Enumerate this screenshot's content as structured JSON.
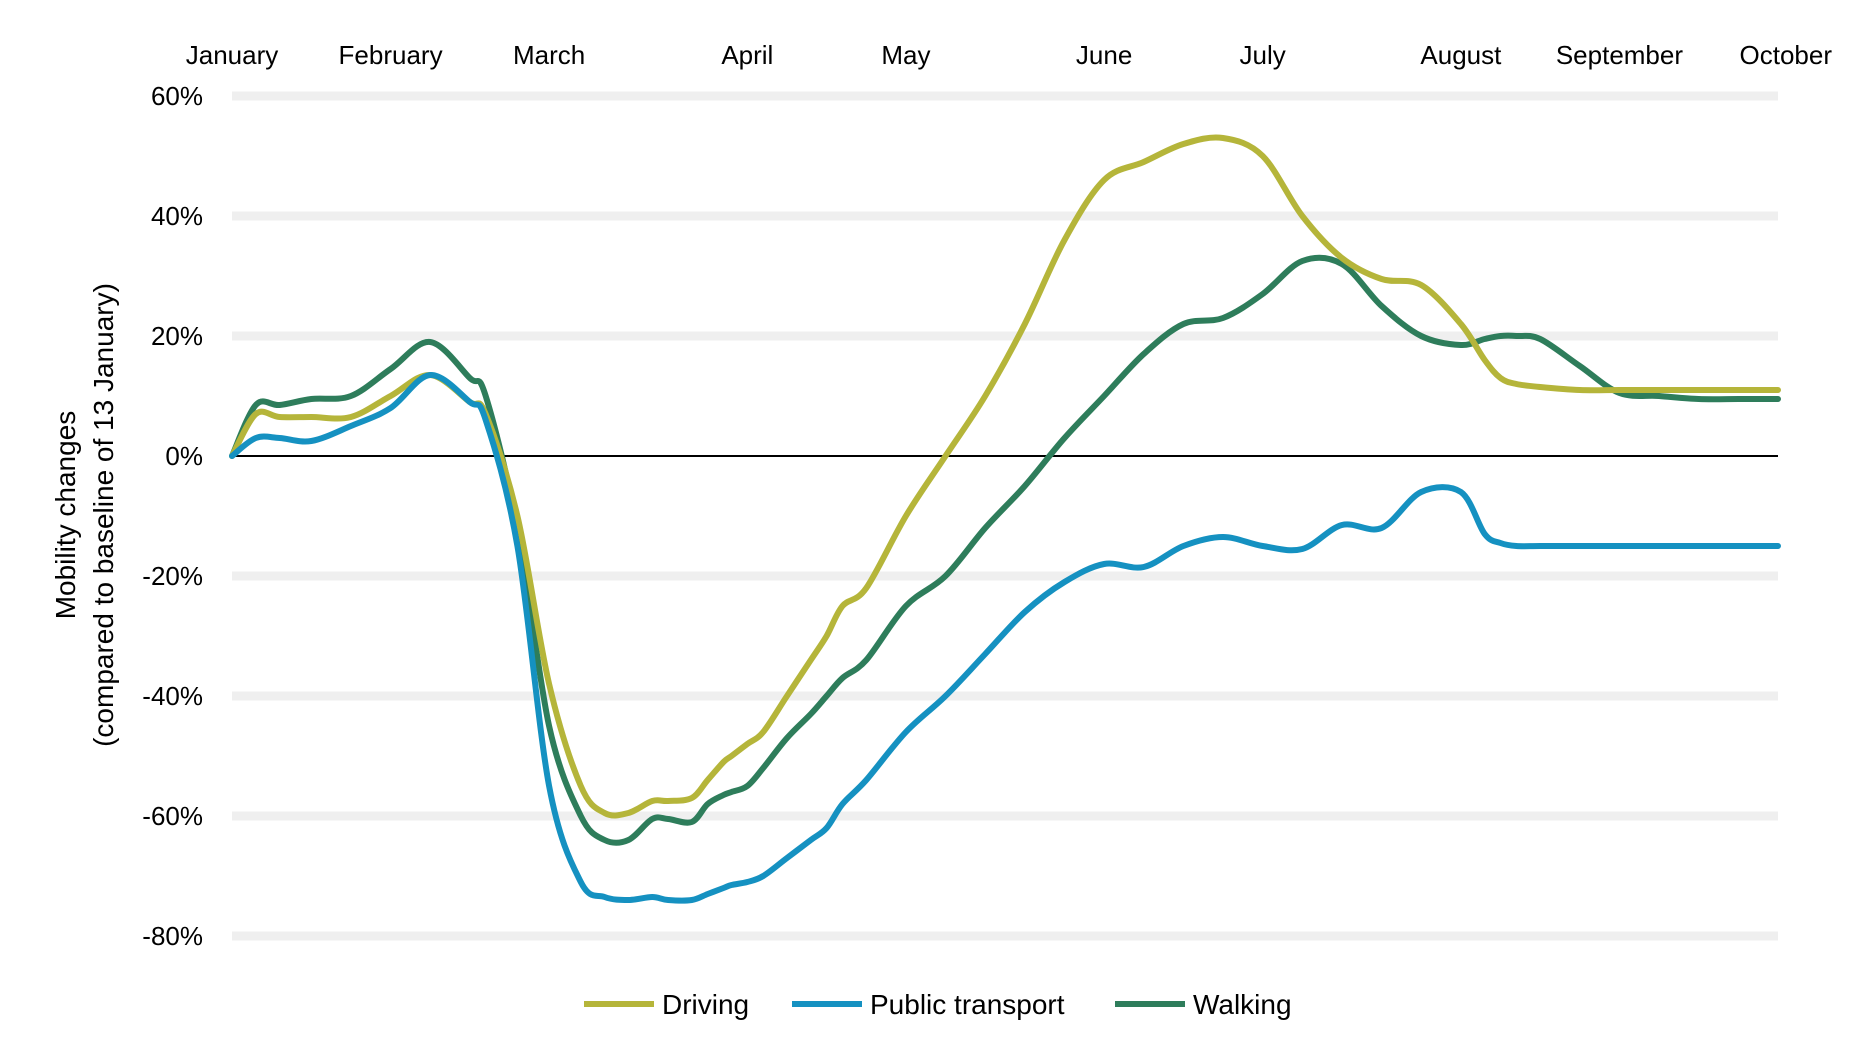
{
  "chart_data": {
    "type": "line",
    "title": "",
    "xlabel": "",
    "ylabel_line1": "Mobility changes",
    "ylabel_line2": "(compared to baseline of 13 January)",
    "ylim": [
      -80,
      60
    ],
    "yticks": [
      60,
      40,
      20,
      0,
      -20,
      -40,
      -60,
      -80
    ],
    "ytick_labels": [
      "60%",
      "40%",
      "20%",
      "0%",
      "-20%",
      "-40%",
      "-60%",
      "-80%"
    ],
    "grid": true,
    "legend_position": "bottom",
    "months": [
      {
        "label": "January",
        "day": 0
      },
      {
        "label": "February",
        "day": 20
      },
      {
        "label": "March",
        "day": 40
      },
      {
        "label": "April",
        "day": 65
      },
      {
        "label": "May",
        "day": 85
      },
      {
        "label": "June",
        "day": 110
      },
      {
        "label": "July",
        "day": 130
      },
      {
        "label": "August",
        "day": 155
      },
      {
        "label": "September",
        "day": 175
      },
      {
        "label": "October",
        "day": 195
      }
    ],
    "x": [
      0,
      3,
      6,
      10,
      15,
      20,
      25,
      30,
      32,
      36,
      40,
      44,
      47,
      50,
      53,
      55,
      58,
      60,
      62,
      63,
      65,
      67,
      70,
      73,
      75,
      77,
      80,
      85,
      90,
      95,
      100,
      105,
      110,
      115,
      120,
      125,
      130,
      135,
      140,
      145,
      150,
      155,
      158,
      160,
      162,
      165,
      170,
      175,
      180,
      185,
      190,
      193,
      195
    ],
    "series": [
      {
        "name": "Driving",
        "color": "#b5b53a",
        "values": [
          0,
          7,
          6.5,
          6.5,
          6.5,
          10,
          13.5,
          9,
          7,
          -10,
          -38,
          -55,
          -59.5,
          -59.5,
          -57.5,
          -57.5,
          -57,
          -54,
          -51,
          -50,
          -48,
          -46,
          -40,
          -34,
          -30,
          -25,
          -22,
          -10,
          0,
          10,
          22,
          36,
          46,
          49,
          52,
          53,
          50,
          40,
          33,
          29.5,
          28.5,
          22,
          16,
          13,
          12,
          11.5,
          11,
          11,
          11,
          11,
          11,
          11,
          11
        ]
      },
      {
        "name": "Public transport",
        "color": "#1591c1",
        "values": [
          0,
          3,
          3,
          2.5,
          5,
          8,
          13.5,
          9,
          6,
          -15,
          -55,
          -71,
          -73.5,
          -74,
          -73.5,
          -74,
          -74,
          -73,
          -72,
          -71.5,
          -71,
          -70,
          -67,
          -64,
          -62,
          -58,
          -54,
          -46,
          -40,
          -33,
          -26,
          -21,
          -18,
          -18.5,
          -15,
          -13.5,
          -15,
          -15.5,
          -11.5,
          -12,
          -6,
          -6,
          -13,
          -14.5,
          -15,
          -15,
          -15,
          -15,
          -15,
          -15,
          -15,
          -15,
          -15
        ]
      },
      {
        "name": "Walking",
        "color": "#2e7d5b",
        "values": [
          0,
          8.5,
          8.5,
          9.5,
          10,
          14.5,
          19,
          13,
          10,
          -12,
          -45,
          -60,
          -64,
          -64,
          -60.5,
          -60.5,
          -61,
          -58,
          -56.5,
          -56,
          -55,
          -52,
          -47,
          -43,
          -40,
          -37,
          -34,
          -25,
          -20,
          -12,
          -5,
          3,
          10,
          17,
          22,
          23,
          27,
          32.5,
          32,
          25,
          20,
          18.5,
          19.5,
          20,
          20,
          19.5,
          15,
          10.5,
          10,
          9.5,
          9.5,
          9.5,
          9.5
        ]
      }
    ]
  }
}
